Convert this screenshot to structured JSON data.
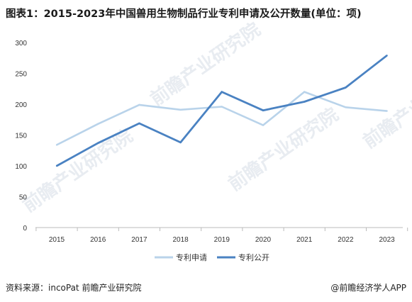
{
  "title": "图表1：2015-2023年中国兽用生物制品行业专利申请及公开数量(单位：项)",
  "source": "资料来源：incoPat 前瞻产业研究院",
  "brand": "@前瞻经济学人APP",
  "watermark": "前瞻产业研究院",
  "colors": {
    "series_apply": "#b9d3ea",
    "series_publish": "#4a82c2",
    "axis": "#bbbbbb"
  },
  "chart_data": {
    "type": "line",
    "title": "图表1：2015-2023年中国兽用生物制品行业专利申请及公开数量(单位：项)",
    "x": [
      "2015",
      "2016",
      "2017",
      "2018",
      "2019",
      "2020",
      "2021",
      "2022",
      "2023"
    ],
    "ylim": [
      0,
      300
    ],
    "yticks": [
      0,
      50,
      100,
      150,
      200,
      250,
      300
    ],
    "grid": false,
    "legend": "bottom",
    "series": [
      {
        "name": "专利申请",
        "values": [
          134,
          168,
          199,
          191,
          196,
          166,
          220,
          195,
          189
        ]
      },
      {
        "name": "专利公开",
        "values": [
          100,
          137,
          169,
          138,
          220,
          190,
          204,
          227,
          279
        ]
      }
    ]
  }
}
